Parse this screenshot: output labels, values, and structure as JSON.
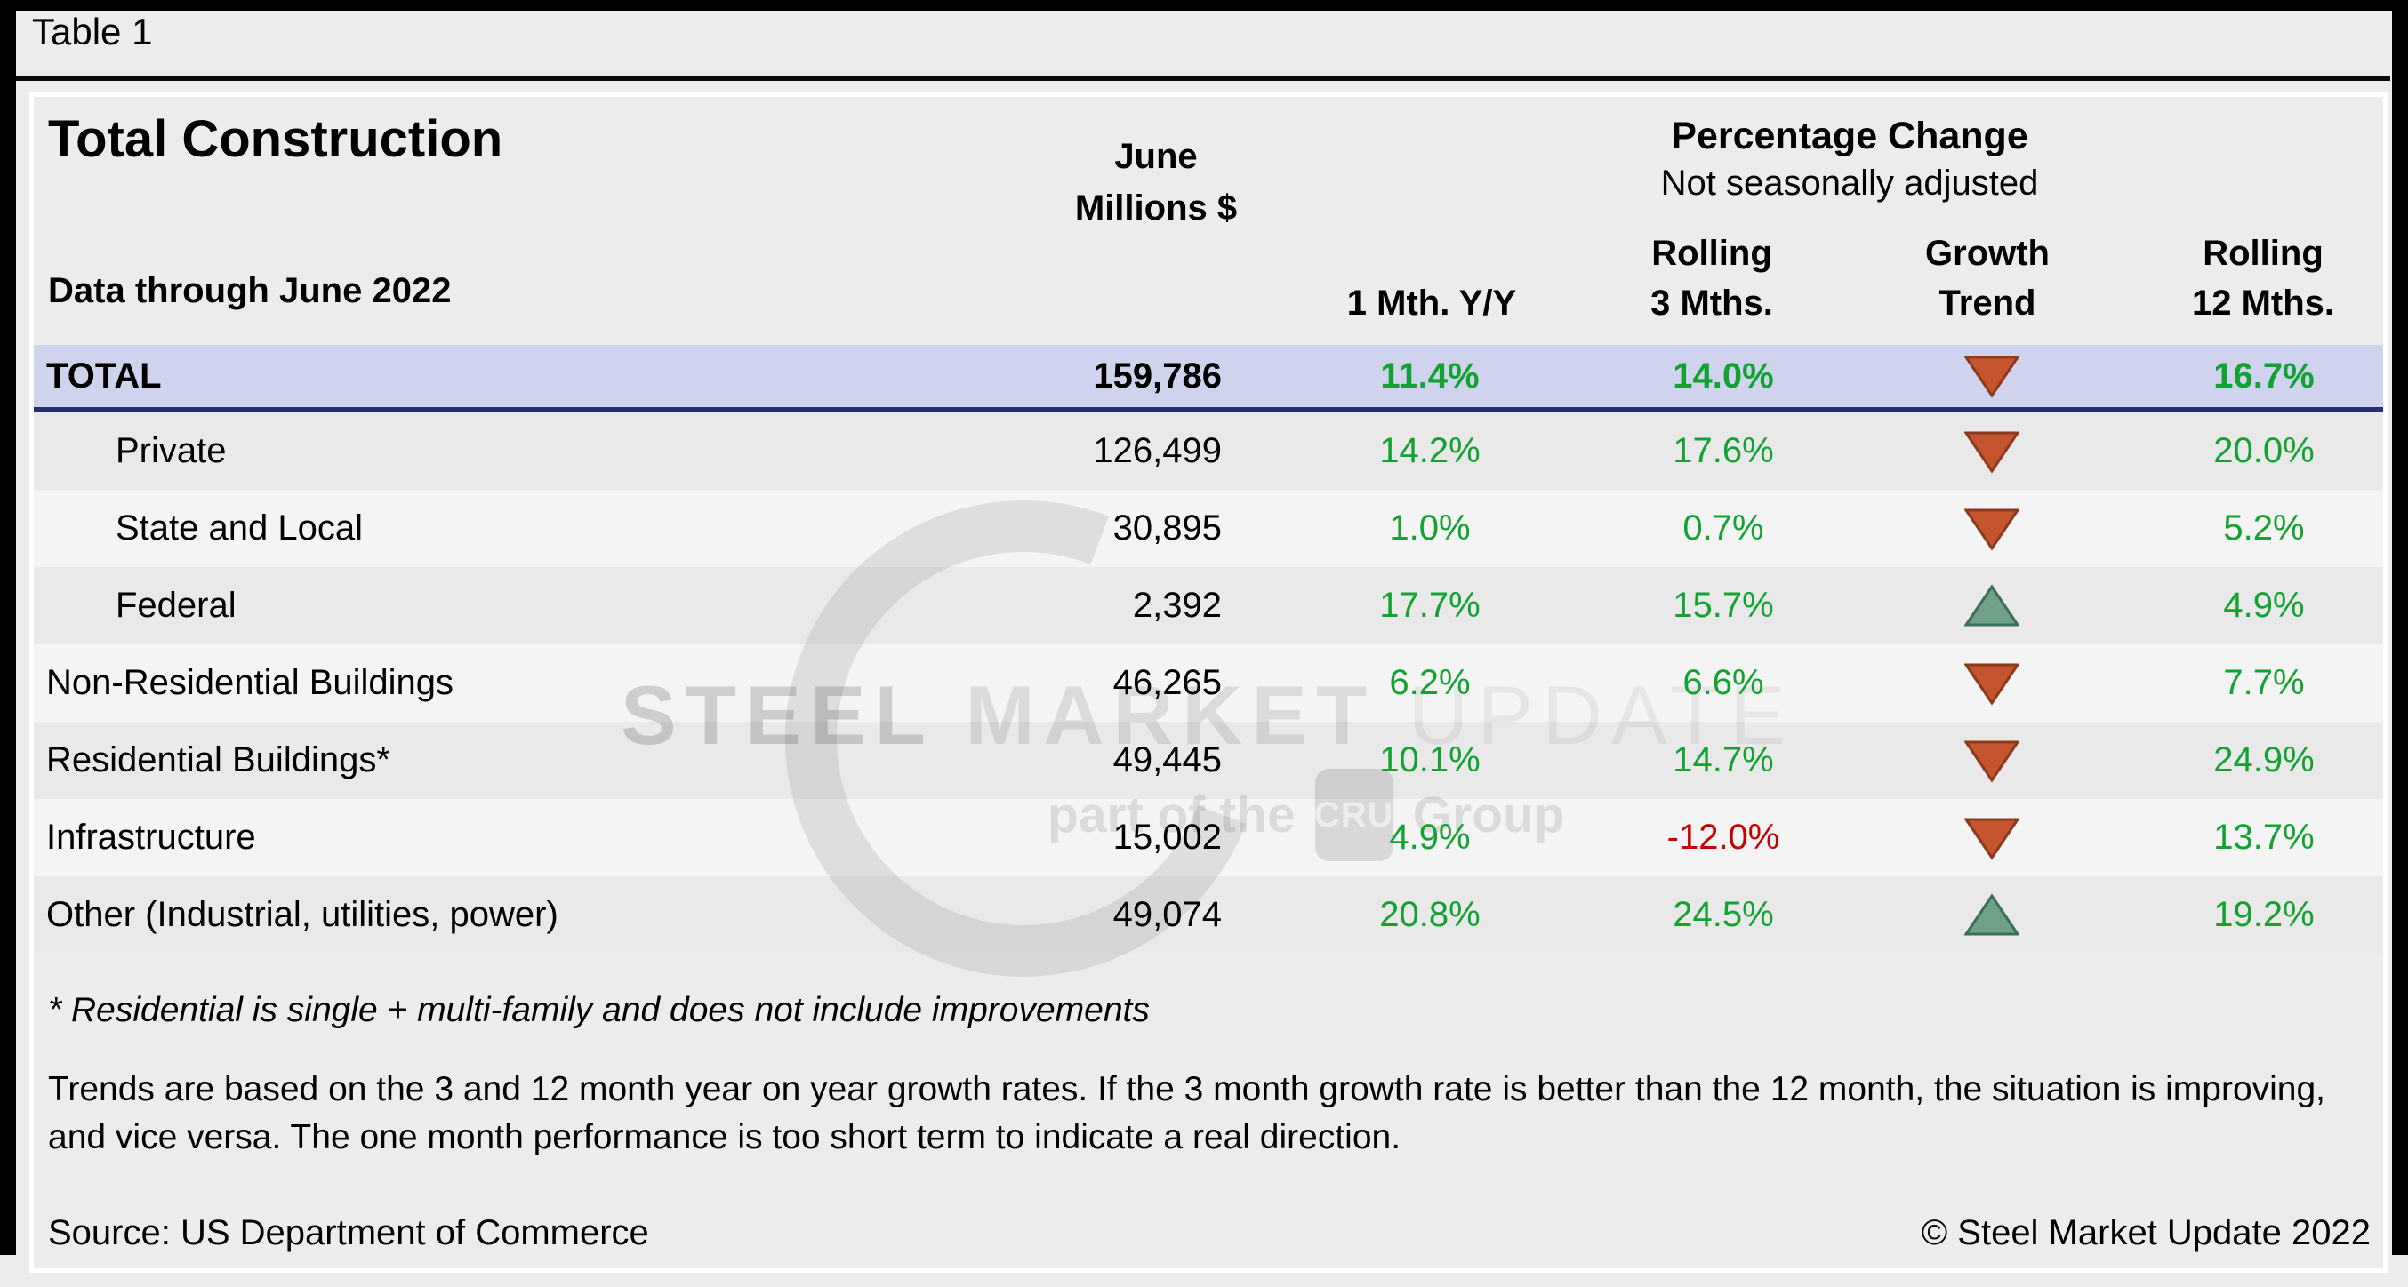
{
  "page": {
    "table_label": "Table 1"
  },
  "header": {
    "title": "Total Construction",
    "subtitle": "Data through June 2022",
    "col_june_line1": "June",
    "col_june_line2": "Millions $",
    "pct_change_title": "Percentage Change",
    "pct_change_subtitle": "Not seasonally adjusted",
    "col_1mth": "1 Mth. Y/Y",
    "col_roll3_line1": "Rolling",
    "col_roll3_line2": "3 Mths.",
    "col_growth_line1": "Growth",
    "col_growth_line2": "Trend",
    "col_roll12_line1": "Rolling",
    "col_roll12_line2": "12 Mths."
  },
  "rows": [
    {
      "label": "TOTAL",
      "millions": "159,786",
      "m1": "11.4%",
      "r3": "14.0%",
      "trend": "down",
      "r12": "16.7%",
      "is_total": true,
      "indent": false
    },
    {
      "label": "Private",
      "millions": "126,499",
      "m1": "14.2%",
      "r3": "17.6%",
      "trend": "down",
      "r12": "20.0%",
      "is_total": false,
      "indent": true
    },
    {
      "label": "State and Local",
      "millions": "30,895",
      "m1": "1.0%",
      "r3": "0.7%",
      "trend": "down",
      "r12": "5.2%",
      "is_total": false,
      "indent": true
    },
    {
      "label": "Federal",
      "millions": "2,392",
      "m1": "17.7%",
      "r3": "15.7%",
      "trend": "up",
      "r12": "4.9%",
      "is_total": false,
      "indent": true
    },
    {
      "label": "Non-Residential Buildings",
      "millions": "46,265",
      "m1": "6.2%",
      "r3": "6.6%",
      "trend": "down",
      "r12": "7.7%",
      "is_total": false,
      "indent": false
    },
    {
      "label": "Residential Buildings*",
      "millions": "49,445",
      "m1": "10.1%",
      "r3": "14.7%",
      "trend": "down",
      "r12": "24.9%",
      "is_total": false,
      "indent": false
    },
    {
      "label": "Infrastructure",
      "millions": "15,002",
      "m1": "4.9%",
      "r3": "-12.0%",
      "trend": "down",
      "r12": "13.7%",
      "is_total": false,
      "indent": false
    },
    {
      "label": "Other (Industrial, utilities, power)",
      "millions": "49,074",
      "m1": "20.8%",
      "r3": "24.5%",
      "trend": "up",
      "r12": "19.2%",
      "is_total": false,
      "indent": false
    }
  ],
  "footnotes": {
    "residential_note": "* Residential is single + multi-family and does not include improvements",
    "trends_note": "Trends are based on the 3 and 12 month year on year growth rates. If the 3 month growth rate is better than the 12 month, the situation is improving, and vice versa. The one month performance is too short term to indicate a real direction.",
    "source": "Source: US Department of Commerce",
    "copyright": "© Steel Market Update 2022"
  },
  "watermark": {
    "word1": "STEEL",
    "word2": "MARKET",
    "word3": "UPDATE",
    "part_prefix": "part of the",
    "cru": "CRU",
    "part_suffix": "Group"
  },
  "colors": {
    "total_row_bg": "#cfd3ee",
    "total_row_border": "#23306b",
    "row_dark": "#e9e9e9",
    "row_light": "#f4f4f4",
    "positive_green": "#12a232",
    "negative_red": "#c80000",
    "arrow_down_fill": "#c4552e",
    "arrow_down_stroke": "#8a3a1f",
    "arrow_up_fill": "#6fa189",
    "arrow_up_stroke": "#3c6e58",
    "frame_black": "#000000",
    "table_bg": "#ececec"
  },
  "chart_data": {
    "type": "table",
    "title": "Total Construction",
    "subtitle": "Data through June 2022",
    "columns": [
      "Category",
      "June Millions $",
      "1 Mth. Y/Y",
      "Rolling 3 Mths.",
      "Growth Trend",
      "Rolling 12 Mths."
    ],
    "rows": [
      [
        "TOTAL",
        159786,
        11.4,
        14.0,
        "down",
        16.7
      ],
      [
        "Private",
        126499,
        14.2,
        17.6,
        "down",
        20.0
      ],
      [
        "State and Local",
        30895,
        1.0,
        0.7,
        "down",
        5.2
      ],
      [
        "Federal",
        2392,
        17.7,
        15.7,
        "up",
        4.9
      ],
      [
        "Non-Residential Buildings",
        46265,
        6.2,
        6.6,
        "down",
        7.7
      ],
      [
        "Residential Buildings*",
        49445,
        10.1,
        14.7,
        "down",
        24.9
      ],
      [
        "Infrastructure",
        15002,
        4.9,
        -12.0,
        "down",
        13.7
      ],
      [
        "Other (Industrial, utilities, power)",
        49074,
        20.8,
        24.5,
        "up",
        19.2
      ]
    ],
    "notes": "Percentage Change, Not seasonally adjusted"
  }
}
